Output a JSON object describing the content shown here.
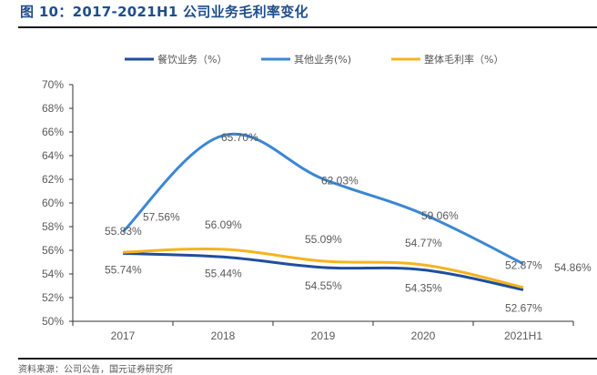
{
  "header": {
    "title": "图 10：2017-2021H1 公司业务毛利率变化"
  },
  "footer": {
    "source": "资料来源：公司公告，国元证券研究所"
  },
  "chart_data": {
    "type": "line",
    "title": "2017-2021H1 公司业务毛利率变化",
    "xlabel": "",
    "ylabel": "",
    "categories": [
      "2017",
      "2018",
      "2019",
      "2020",
      "2021H1"
    ],
    "ylim": [
      50,
      70
    ],
    "yticks": [
      50,
      52,
      54,
      56,
      58,
      60,
      62,
      64,
      66,
      68,
      70
    ],
    "ytick_labels": [
      "50%",
      "52%",
      "54%",
      "56%",
      "58%",
      "60%",
      "62%",
      "64%",
      "66%",
      "68%",
      "70%"
    ],
    "grid": false,
    "legend_position": "top",
    "series": [
      {
        "name": "餐饮业务（%）",
        "color": "#1f4e9c",
        "values": [
          55.74,
          55.44,
          54.55,
          54.35,
          52.67
        ],
        "labels": [
          "55.74%",
          "55.44%",
          "54.55%",
          "54.35%",
          "52.67%"
        ]
      },
      {
        "name": "其他业务(%)",
        "color": "#3b87d4",
        "values": [
          57.56,
          65.7,
          62.03,
          59.06,
          54.86
        ],
        "labels": [
          "57.56%",
          "65.70%",
          "62.03%",
          "59.06%",
          "54.86%"
        ]
      },
      {
        "name": "整体毛利率（%）",
        "color": "#f5b41d",
        "values": [
          55.83,
          56.09,
          55.09,
          54.77,
          52.87
        ],
        "labels": [
          "55.83%",
          "56.09%",
          "55.09%",
          "54.77%",
          "52.87%"
        ]
      }
    ]
  }
}
